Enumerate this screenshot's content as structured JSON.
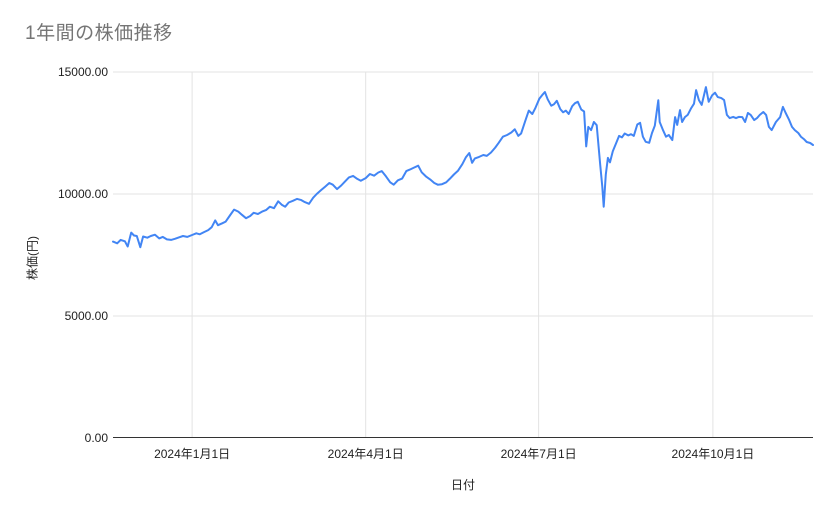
{
  "title": "1年間の株価推移",
  "colors": {
    "line": "#4285f4",
    "grid": "#e3e3e3",
    "axis_line": "#333333",
    "title_text": "#757575",
    "tick_text": "#1f1f1f"
  },
  "chart_data": {
    "type": "line",
    "title": "1年間の株価推移",
    "xlabel": "日付",
    "ylabel": "株価(円)",
    "ylim": [
      0,
      15000
    ],
    "grid": true,
    "legend": "none",
    "y_axis": {
      "title": "株価(円)",
      "ticks": [
        {
          "value": 15000,
          "label": "15000.00"
        },
        {
          "value": 10000,
          "label": "10000.00"
        },
        {
          "value": 5000,
          "label": "5000.00"
        },
        {
          "value": 0,
          "label": "0.00"
        }
      ]
    },
    "x_axis": {
      "title": "日付",
      "ticks": [
        {
          "t": 0.113,
          "label": "2024年1月1日"
        },
        {
          "t": 0.361,
          "label": "2024年4月1日"
        },
        {
          "t": 0.608,
          "label": "2024年7月1日"
        },
        {
          "t": 0.857,
          "label": "2024年10月1日"
        }
      ]
    },
    "series": [
      {
        "name": "株価",
        "color": "#4285f4",
        "points": [
          [
            0.0,
            8050
          ],
          [
            0.006,
            7980
          ],
          [
            0.011,
            8120
          ],
          [
            0.017,
            8060
          ],
          [
            0.021,
            7850
          ],
          [
            0.026,
            8420
          ],
          [
            0.03,
            8300
          ],
          [
            0.034,
            8280
          ],
          [
            0.039,
            7820
          ],
          [
            0.043,
            8260
          ],
          [
            0.049,
            8210
          ],
          [
            0.054,
            8280
          ],
          [
            0.06,
            8330
          ],
          [
            0.066,
            8180
          ],
          [
            0.071,
            8240
          ],
          [
            0.077,
            8140
          ],
          [
            0.083,
            8120
          ],
          [
            0.089,
            8170
          ],
          [
            0.094,
            8220
          ],
          [
            0.1,
            8280
          ],
          [
            0.106,
            8240
          ],
          [
            0.113,
            8320
          ],
          [
            0.119,
            8390
          ],
          [
            0.124,
            8350
          ],
          [
            0.13,
            8440
          ],
          [
            0.136,
            8520
          ],
          [
            0.141,
            8640
          ],
          [
            0.146,
            8920
          ],
          [
            0.15,
            8720
          ],
          [
            0.156,
            8800
          ],
          [
            0.161,
            8870
          ],
          [
            0.167,
            9120
          ],
          [
            0.173,
            9360
          ],
          [
            0.179,
            9280
          ],
          [
            0.184,
            9150
          ],
          [
            0.19,
            9010
          ],
          [
            0.196,
            9100
          ],
          [
            0.201,
            9230
          ],
          [
            0.207,
            9180
          ],
          [
            0.213,
            9280
          ],
          [
            0.219,
            9350
          ],
          [
            0.224,
            9480
          ],
          [
            0.23,
            9420
          ],
          [
            0.236,
            9700
          ],
          [
            0.241,
            9560
          ],
          [
            0.246,
            9480
          ],
          [
            0.251,
            9650
          ],
          [
            0.257,
            9720
          ],
          [
            0.263,
            9800
          ],
          [
            0.269,
            9750
          ],
          [
            0.274,
            9670
          ],
          [
            0.28,
            9600
          ],
          [
            0.286,
            9850
          ],
          [
            0.291,
            10000
          ],
          [
            0.297,
            10150
          ],
          [
            0.303,
            10300
          ],
          [
            0.309,
            10450
          ],
          [
            0.314,
            10380
          ],
          [
            0.32,
            10200
          ],
          [
            0.326,
            10350
          ],
          [
            0.331,
            10500
          ],
          [
            0.337,
            10680
          ],
          [
            0.343,
            10740
          ],
          [
            0.349,
            10620
          ],
          [
            0.354,
            10540
          ],
          [
            0.361,
            10650
          ],
          [
            0.367,
            10820
          ],
          [
            0.373,
            10750
          ],
          [
            0.379,
            10880
          ],
          [
            0.384,
            10940
          ],
          [
            0.39,
            10720
          ],
          [
            0.396,
            10480
          ],
          [
            0.401,
            10380
          ],
          [
            0.407,
            10560
          ],
          [
            0.413,
            10630
          ],
          [
            0.419,
            10940
          ],
          [
            0.424,
            11000
          ],
          [
            0.43,
            11080
          ],
          [
            0.436,
            11160
          ],
          [
            0.441,
            10890
          ],
          [
            0.447,
            10720
          ],
          [
            0.453,
            10600
          ],
          [
            0.459,
            10450
          ],
          [
            0.464,
            10380
          ],
          [
            0.47,
            10400
          ],
          [
            0.476,
            10480
          ],
          [
            0.481,
            10620
          ],
          [
            0.487,
            10800
          ],
          [
            0.493,
            10960
          ],
          [
            0.499,
            11220
          ],
          [
            0.504,
            11500
          ],
          [
            0.509,
            11680
          ],
          [
            0.513,
            11280
          ],
          [
            0.517,
            11460
          ],
          [
            0.523,
            11520
          ],
          [
            0.529,
            11600
          ],
          [
            0.534,
            11560
          ],
          [
            0.54,
            11700
          ],
          [
            0.546,
            11900
          ],
          [
            0.551,
            12100
          ],
          [
            0.557,
            12350
          ],
          [
            0.563,
            12420
          ],
          [
            0.569,
            12520
          ],
          [
            0.574,
            12650
          ],
          [
            0.579,
            12380
          ],
          [
            0.583,
            12480
          ],
          [
            0.589,
            13000
          ],
          [
            0.594,
            13420
          ],
          [
            0.599,
            13280
          ],
          [
            0.603,
            13500
          ],
          [
            0.609,
            13900
          ],
          [
            0.613,
            14050
          ],
          [
            0.617,
            14180
          ],
          [
            0.621,
            13880
          ],
          [
            0.626,
            13620
          ],
          [
            0.63,
            13680
          ],
          [
            0.634,
            13820
          ],
          [
            0.639,
            13480
          ],
          [
            0.643,
            13350
          ],
          [
            0.647,
            13420
          ],
          [
            0.651,
            13280
          ],
          [
            0.656,
            13600
          ],
          [
            0.66,
            13720
          ],
          [
            0.664,
            13780
          ],
          [
            0.669,
            13460
          ],
          [
            0.673,
            13380
          ],
          [
            0.676,
            11950
          ],
          [
            0.679,
            12750
          ],
          [
            0.683,
            12620
          ],
          [
            0.687,
            12950
          ],
          [
            0.691,
            12820
          ],
          [
            0.696,
            11200
          ],
          [
            0.699,
            10300
          ],
          [
            0.701,
            9480
          ],
          [
            0.704,
            10800
          ],
          [
            0.707,
            11480
          ],
          [
            0.71,
            11300
          ],
          [
            0.714,
            11750
          ],
          [
            0.719,
            12100
          ],
          [
            0.723,
            12380
          ],
          [
            0.727,
            12320
          ],
          [
            0.731,
            12480
          ],
          [
            0.736,
            12400
          ],
          [
            0.74,
            12450
          ],
          [
            0.744,
            12380
          ],
          [
            0.749,
            12850
          ],
          [
            0.753,
            12920
          ],
          [
            0.757,
            12350
          ],
          [
            0.761,
            12140
          ],
          [
            0.766,
            12100
          ],
          [
            0.77,
            12500
          ],
          [
            0.774,
            12800
          ],
          [
            0.779,
            13840
          ],
          [
            0.781,
            12950
          ],
          [
            0.786,
            12600
          ],
          [
            0.79,
            12350
          ],
          [
            0.794,
            12420
          ],
          [
            0.799,
            12210
          ],
          [
            0.803,
            13150
          ],
          [
            0.806,
            12830
          ],
          [
            0.81,
            13440
          ],
          [
            0.813,
            12950
          ],
          [
            0.817,
            13150
          ],
          [
            0.821,
            13240
          ],
          [
            0.826,
            13520
          ],
          [
            0.83,
            13700
          ],
          [
            0.833,
            14260
          ],
          [
            0.837,
            13850
          ],
          [
            0.841,
            13650
          ],
          [
            0.847,
            14380
          ],
          [
            0.851,
            13780
          ],
          [
            0.856,
            14050
          ],
          [
            0.86,
            14150
          ],
          [
            0.864,
            13970
          ],
          [
            0.869,
            13930
          ],
          [
            0.873,
            13850
          ],
          [
            0.877,
            13240
          ],
          [
            0.881,
            13110
          ],
          [
            0.886,
            13160
          ],
          [
            0.89,
            13110
          ],
          [
            0.894,
            13160
          ],
          [
            0.899,
            13150
          ],
          [
            0.903,
            12950
          ],
          [
            0.907,
            13320
          ],
          [
            0.911,
            13240
          ],
          [
            0.916,
            13030
          ],
          [
            0.92,
            13110
          ],
          [
            0.924,
            13240
          ],
          [
            0.929,
            13360
          ],
          [
            0.933,
            13240
          ],
          [
            0.937,
            12750
          ],
          [
            0.941,
            12620
          ],
          [
            0.947,
            12950
          ],
          [
            0.953,
            13150
          ],
          [
            0.957,
            13570
          ],
          [
            0.961,
            13320
          ],
          [
            0.966,
            13030
          ],
          [
            0.97,
            12750
          ],
          [
            0.974,
            12620
          ],
          [
            0.979,
            12500
          ],
          [
            0.983,
            12340
          ],
          [
            0.987,
            12250
          ],
          [
            0.991,
            12130
          ],
          [
            0.996,
            12090
          ],
          [
            1.0,
            12010
          ]
        ]
      }
    ]
  }
}
